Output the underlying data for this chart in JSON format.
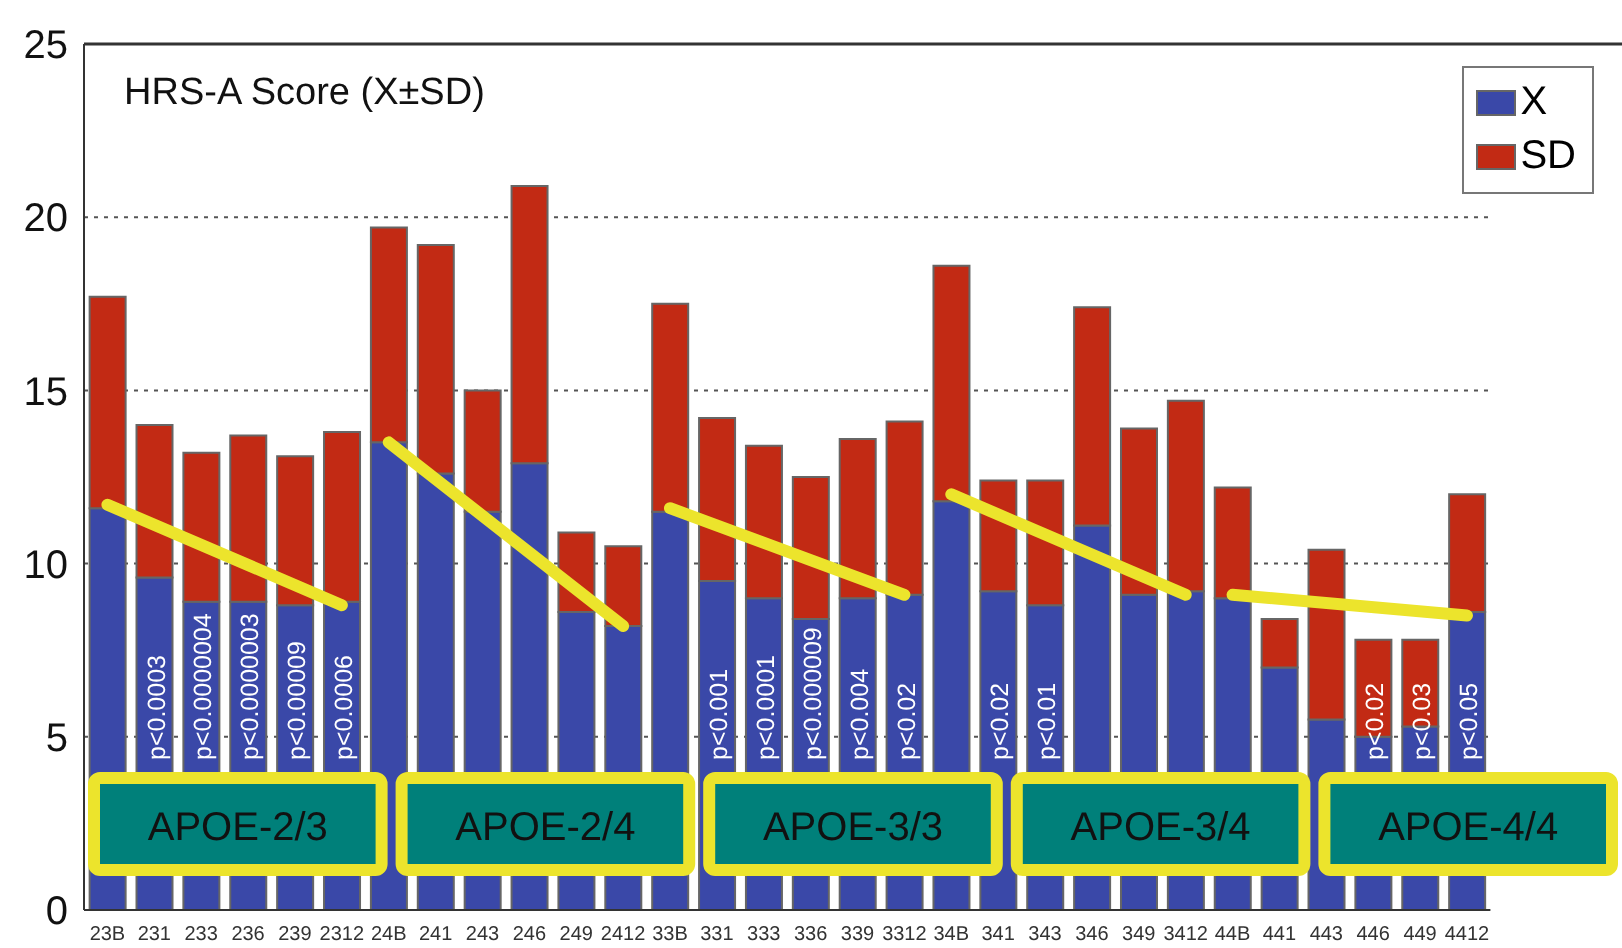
{
  "chart_data": {
    "type": "bar",
    "title": "HRS-A Score (X±SD)",
    "stacked": true,
    "categories": [
      "23B",
      "231",
      "233",
      "236",
      "239",
      "2312",
      "24B",
      "241",
      "243",
      "246",
      "249",
      "2412",
      "33B",
      "331",
      "333",
      "336",
      "339",
      "3312",
      "34B",
      "341",
      "343",
      "346",
      "349",
      "3412",
      "44B",
      "441",
      "443",
      "446",
      "449",
      "4412"
    ],
    "series": [
      {
        "name": "X",
        "color": "#3a48a8",
        "values": [
          11.6,
          9.6,
          8.9,
          8.9,
          8.8,
          8.9,
          13.5,
          12.6,
          11.5,
          12.9,
          8.6,
          8.2,
          11.5,
          9.5,
          9.0,
          8.4,
          9.0,
          9.1,
          11.8,
          9.2,
          8.8,
          11.1,
          9.1,
          9.2,
          9.0,
          7.0,
          5.5,
          5.0,
          5.3,
          8.6
        ],
        "value_labels": [
          null,
          "p<0.0003",
          "p<0.0000004",
          "p<0.0000003",
          "p<0.00009",
          "p<0.0006",
          null,
          null,
          null,
          null,
          null,
          null,
          null,
          "p<0.001",
          "p<0.0001",
          "p<0.000009",
          "p<0.004",
          "p<0.02",
          null,
          "p<0.02",
          "p<0.01",
          null,
          null,
          null,
          null,
          null,
          null,
          "p<0.02",
          "p<0.03",
          "p<0.05"
        ]
      },
      {
        "name": "SD",
        "color": "#c22a14",
        "values": [
          6.1,
          4.4,
          4.3,
          4.8,
          4.3,
          4.9,
          6.2,
          6.6,
          3.5,
          8.0,
          2.3,
          2.3,
          6.0,
          4.7,
          4.4,
          4.1,
          4.6,
          5.0,
          6.8,
          3.2,
          3.6,
          6.3,
          4.8,
          5.5,
          3.2,
          1.4,
          4.9,
          2.8,
          2.5,
          3.4
        ]
      },
      {
        "type": "line",
        "color": "#ece42c",
        "values": [
          11.7,
          null,
          null,
          null,
          null,
          8.8,
          null,
          null,
          null,
          null,
          null,
          null,
          null,
          null,
          null,
          null,
          null,
          null,
          null,
          null,
          null,
          null,
          null,
          null,
          null,
          null,
          null,
          null,
          null,
          null
        ]
      },
      {
        "type": "line",
        "color": "#ece42c",
        "values": [
          null,
          null,
          null,
          null,
          null,
          null,
          13.5,
          null,
          null,
          null,
          null,
          8.2,
          null,
          null,
          null,
          null,
          null,
          null,
          null,
          null,
          null,
          null,
          null,
          null,
          null,
          null,
          null,
          null,
          null,
          null
        ]
      },
      {
        "type": "line",
        "color": "#ece42c",
        "values": [
          null,
          null,
          null,
          null,
          null,
          null,
          null,
          null,
          null,
          null,
          null,
          null,
          11.6,
          null,
          null,
          null,
          null,
          9.1,
          null,
          null,
          null,
          null,
          null,
          null,
          null,
          null,
          null,
          null,
          null,
          null
        ]
      },
      {
        "type": "line",
        "color": "#ece42c",
        "values": [
          null,
          null,
          null,
          null,
          null,
          null,
          null,
          null,
          null,
          null,
          null,
          null,
          null,
          null,
          null,
          null,
          null,
          null,
          12.0,
          null,
          null,
          null,
          null,
          9.1,
          null,
          null,
          null,
          null,
          null,
          null
        ]
      },
      {
        "type": "line",
        "color": "#ece42c",
        "values": [
          null,
          null,
          null,
          null,
          null,
          null,
          null,
          null,
          null,
          null,
          null,
          null,
          null,
          null,
          null,
          null,
          null,
          null,
          null,
          null,
          null,
          null,
          null,
          null,
          9.1,
          null,
          null,
          null,
          null,
          8.5
        ]
      }
    ],
    "ylim": [
      0,
      25
    ],
    "yticks": [
      0,
      5,
      10,
      15,
      20,
      25
    ],
    "grid": "y",
    "legend": "top right",
    "annotations": [
      "APOE-2/3",
      "APOE-2/4",
      "APOE-3/3",
      "APOE-3/4",
      "APOE-4/4"
    ]
  }
}
